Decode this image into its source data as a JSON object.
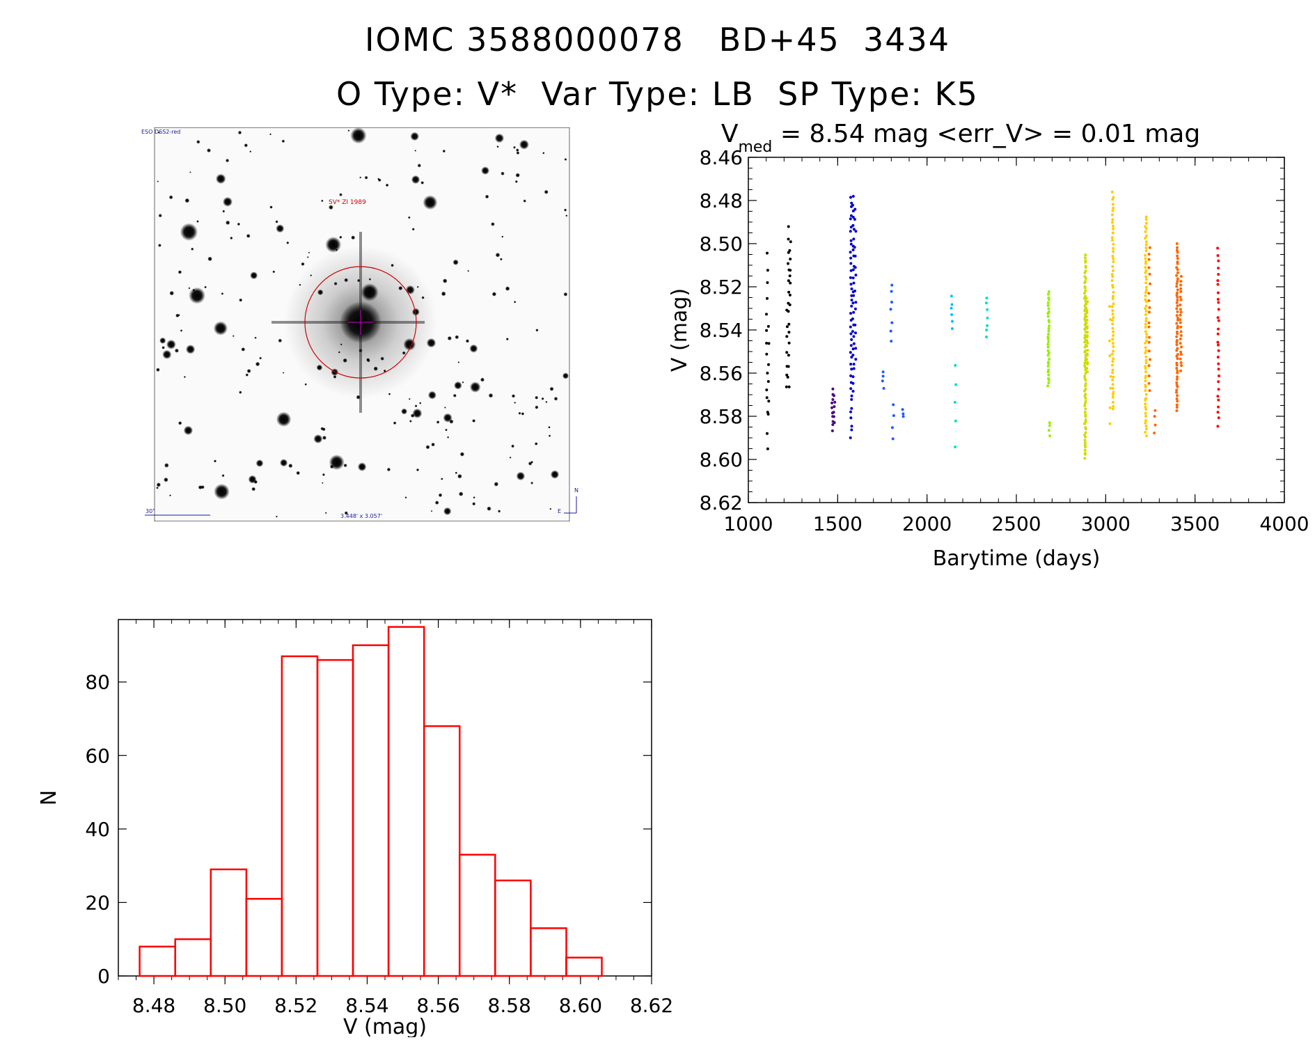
{
  "header": {
    "title_line1": "IOMC 3588000078   BD+45  3434",
    "title_line2": "O Type: V*  Var Type: LB  SP Type: K5"
  },
  "finder_chart": {
    "survey_label": "ESO DSS2-red",
    "target_label": "SV* ZI 1989",
    "scale_label": "30\"",
    "fov_label": "3.448' x 3.057'",
    "compass_n": "N",
    "compass_e": "E",
    "circle_color": "#cc0000"
  },
  "chart_data": [
    {
      "type": "scatter",
      "title_main": "V",
      "title_sub": "med",
      "title_rest": " = 8.54 mag <err_V> = 0.01 mag",
      "xlabel": "Barytime (days)",
      "ylabel": "V (mag)",
      "xlim": [
        1000,
        4000
      ],
      "ylim": [
        8.62,
        8.46
      ],
      "y_inverted": true,
      "xticks": [
        1000,
        1500,
        2000,
        2500,
        3000,
        3500,
        4000
      ],
      "yticks": [
        8.46,
        8.48,
        8.5,
        8.52,
        8.54,
        8.56,
        8.58,
        8.6,
        8.62
      ],
      "color_by_time": [
        "#000000",
        "#4b0082",
        "#0000cd",
        "#1e5aff",
        "#00bfff",
        "#00e0c0",
        "#33dd00",
        "#99ee00",
        "#ccdd00",
        "#ffcc00",
        "#ff6600",
        "#ff0000"
      ],
      "series": [
        {
          "x": 1105,
          "y_min": 8.504,
          "y_max": 8.598,
          "n": 14
        },
        {
          "x": 1115,
          "y_min": 8.534,
          "y_max": 8.585,
          "n": 6
        },
        {
          "x": 1215,
          "y_min": 8.53,
          "y_max": 8.571,
          "n": 7
        },
        {
          "x": 1225,
          "y_min": 8.492,
          "y_max": 8.57,
          "n": 16
        },
        {
          "x": 1235,
          "y_min": 8.498,
          "y_max": 8.53,
          "n": 8
        },
        {
          "x": 1470,
          "y_min": 8.567,
          "y_max": 8.588,
          "n": 10
        },
        {
          "x": 1480,
          "y_min": 8.57,
          "y_max": 8.584,
          "n": 6
        },
        {
          "x": 1575,
          "y_min": 8.477,
          "y_max": 8.592,
          "n": 40
        },
        {
          "x": 1588,
          "y_min": 8.478,
          "y_max": 8.57,
          "n": 30
        },
        {
          "x": 1598,
          "y_min": 8.483,
          "y_max": 8.556,
          "n": 14
        },
        {
          "x": 1755,
          "y_min": 8.559,
          "y_max": 8.568,
          "n": 4
        },
        {
          "x": 1800,
          "y_min": 8.517,
          "y_max": 8.547,
          "n": 7
        },
        {
          "x": 1810,
          "y_min": 8.573,
          "y_max": 8.596,
          "n": 4
        },
        {
          "x": 1865,
          "y_min": 8.576,
          "y_max": 8.582,
          "n": 3
        },
        {
          "x": 2140,
          "y_min": 8.524,
          "y_max": 8.541,
          "n": 6
        },
        {
          "x": 2160,
          "y_min": 8.555,
          "y_max": 8.6,
          "n": 5
        },
        {
          "x": 2335,
          "y_min": 8.524,
          "y_max": 8.546,
          "n": 7
        },
        {
          "x": 2680,
          "y_min": 8.522,
          "y_max": 8.567,
          "n": 35
        },
        {
          "x": 2685,
          "y_min": 8.582,
          "y_max": 8.59,
          "n": 4
        },
        {
          "x": 2885,
          "y_min": 8.505,
          "y_max": 8.6,
          "n": 80
        },
        {
          "x": 2895,
          "y_min": 8.525,
          "y_max": 8.56,
          "n": 25
        },
        {
          "x": 3040,
          "y_min": 8.476,
          "y_max": 8.578,
          "n": 60
        },
        {
          "x": 3025,
          "y_min": 8.526,
          "y_max": 8.588,
          "n": 8
        },
        {
          "x": 3225,
          "y_min": 8.487,
          "y_max": 8.59,
          "n": 70
        },
        {
          "x": 3245,
          "y_min": 8.5,
          "y_max": 8.57,
          "n": 20
        },
        {
          "x": 3275,
          "y_min": 8.577,
          "y_max": 8.589,
          "n": 4
        },
        {
          "x": 3400,
          "y_min": 8.5,
          "y_max": 8.578,
          "n": 60
        },
        {
          "x": 3420,
          "y_min": 8.515,
          "y_max": 8.56,
          "n": 25
        },
        {
          "x": 3630,
          "y_min": 8.502,
          "y_max": 8.586,
          "n": 30
        }
      ]
    },
    {
      "type": "bar",
      "subtype": "histogram",
      "xlabel": "V (mag)",
      "ylabel": "N",
      "xlim": [
        8.47,
        8.62
      ],
      "ylim": [
        0,
        97
      ],
      "xticks": [
        8.48,
        8.5,
        8.52,
        8.54,
        8.56,
        8.58,
        8.6,
        8.62
      ],
      "yticks": [
        0,
        20,
        40,
        60,
        80
      ],
      "bin_width": 0.01,
      "bin_edges": [
        8.476,
        8.486,
        8.496,
        8.506,
        8.516,
        8.526,
        8.536,
        8.546,
        8.556,
        8.566,
        8.576,
        8.586,
        8.596,
        8.606
      ],
      "values": [
        8,
        10,
        29,
        21,
        87,
        86,
        90,
        95,
        68,
        33,
        26,
        13,
        5
      ],
      "bar_color": "#ff0000"
    }
  ]
}
